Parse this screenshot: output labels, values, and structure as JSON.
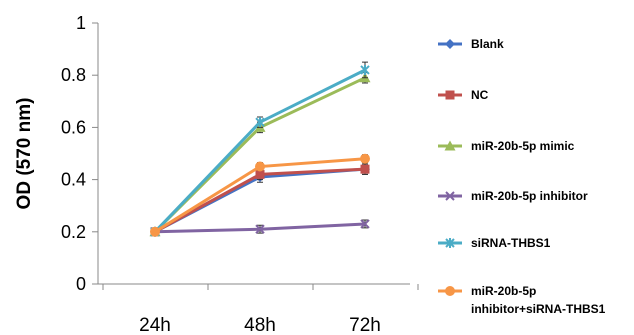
{
  "chart_data": {
    "type": "line",
    "title": "",
    "xlabel": "",
    "ylabel": "OD (570 nm)",
    "ylim": [
      0,
      1
    ],
    "yticks": [
      "0",
      "0.2",
      "0.4",
      "0.6",
      "0.8",
      "1"
    ],
    "categories": [
      "24h",
      "48h",
      "72h"
    ],
    "grid": false,
    "legend_position": "right",
    "series": [
      {
        "name": "Blank",
        "values": [
          0.2,
          0.41,
          0.44
        ],
        "errors": [
          0,
          0.02,
          0.02
        ],
        "color": "#4472C4",
        "marker": "diamond"
      },
      {
        "name": "NC",
        "values": [
          0.2,
          0.42,
          0.44
        ],
        "errors": [
          0,
          0.02,
          0.02
        ],
        "color": "#C0504D",
        "marker": "square"
      },
      {
        "name": "miR-20b-5p mimic",
        "values": [
          0.2,
          0.6,
          0.79
        ],
        "errors": [
          0,
          0.02,
          0.02
        ],
        "color": "#9BBB59",
        "marker": "triangle"
      },
      {
        "name": "miR-20b-5p inhibitor",
        "values": [
          0.2,
          0.21,
          0.23
        ],
        "errors": [
          0,
          0.015,
          0.015
        ],
        "color": "#8064A2",
        "marker": "x"
      },
      {
        "name": "siRNA-THBS1",
        "values": [
          0.2,
          0.62,
          0.82
        ],
        "errors": [
          0,
          0.02,
          0.03
        ],
        "color": "#4BACC6",
        "marker": "star"
      },
      {
        "name": "miR-20b-5p inhibitor+siRNA-THBS1",
        "legend_lines": [
          "miR-20b-5p",
          "inhibitor+siRNA-THBS1"
        ],
        "values": [
          0.2,
          0.45,
          0.48
        ],
        "errors": [
          0,
          0.015,
          0.015
        ],
        "color": "#F79646",
        "marker": "circle"
      }
    ]
  }
}
